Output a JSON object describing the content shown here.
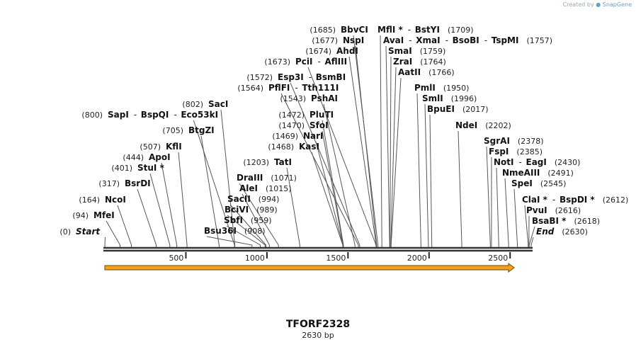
{
  "credit": {
    "prefix": "Created by",
    "brand": "SnapGene"
  },
  "plasmid": {
    "name": "TFORF2328",
    "length_label": "2630 bp",
    "length": 2630
  },
  "ruler": {
    "ticks": [
      500,
      1000,
      1500,
      2000,
      2500
    ],
    "tick_labels": [
      "500",
      "1000",
      "1500",
      "2000",
      "2500"
    ]
  },
  "feature": {
    "name": "ORF arrow",
    "start": 0,
    "end": 2630,
    "color": "#f2a01e"
  },
  "labels": [
    {
      "id": "start",
      "pos": 0,
      "pos_label": "(0)",
      "names": [
        "Start"
      ],
      "italic": true
    },
    {
      "id": "mfei",
      "pos": 94,
      "pos_label": "(94)",
      "names": [
        "MfeI"
      ]
    },
    {
      "id": "ncoi",
      "pos": 164,
      "pos_label": "(164)",
      "names": [
        "NcoI"
      ]
    },
    {
      "id": "bsrdi",
      "pos": 317,
      "pos_label": "(317)",
      "names": [
        "BsrDI"
      ]
    },
    {
      "id": "stui",
      "pos": 401,
      "pos_label": "(401)",
      "names": [
        "StuI *"
      ]
    },
    {
      "id": "apoi",
      "pos": 444,
      "pos_label": "(444)",
      "names": [
        "ApoI"
      ]
    },
    {
      "id": "kfli",
      "pos": 507,
      "pos_label": "(507)",
      "names": [
        "KflI"
      ]
    },
    {
      "id": "btgzi",
      "pos": 705,
      "pos_label": "(705)",
      "names": [
        "BtgZI"
      ]
    },
    {
      "id": "sapi",
      "pos": 800,
      "pos_label": "(800)",
      "names": [
        "SapI",
        "BspQI",
        "Eco53kI"
      ]
    },
    {
      "id": "saci",
      "pos": 802,
      "pos_label": "(802)",
      "names": [
        "SacI"
      ]
    },
    {
      "id": "bsu36i",
      "pos": 908,
      "pos_label": "(908)",
      "names": [
        "Bsu36I"
      ]
    },
    {
      "id": "sbfi",
      "pos": 959,
      "pos_label": "(959)",
      "names": [
        "SbfI"
      ]
    },
    {
      "id": "bcivi",
      "pos": 989,
      "pos_label": "(989)",
      "names": [
        "BciVI"
      ]
    },
    {
      "id": "sacii",
      "pos": 994,
      "pos_label": "(994)",
      "names": [
        "SacII"
      ]
    },
    {
      "id": "alei",
      "pos": 1015,
      "pos_label": "(1015)",
      "names": [
        "AleI"
      ]
    },
    {
      "id": "draiii",
      "pos": 1071,
      "pos_label": "(1071)",
      "names": [
        "DraIII"
      ]
    },
    {
      "id": "tati",
      "pos": 1203,
      "pos_label": "(1203)",
      "names": [
        "TatI"
      ]
    },
    {
      "id": "kasi",
      "pos": 1468,
      "pos_label": "(1468)",
      "names": [
        "KasI"
      ]
    },
    {
      "id": "nari",
      "pos": 1469,
      "pos_label": "(1469)",
      "names": [
        "NarI"
      ]
    },
    {
      "id": "sfoi",
      "pos": 1470,
      "pos_label": "(1470)",
      "names": [
        "SfoI"
      ]
    },
    {
      "id": "pluti",
      "pos": 1472,
      "pos_label": "(1472)",
      "names": [
        "PluTI"
      ]
    },
    {
      "id": "pshai",
      "pos": 1543,
      "pos_label": "(1543)",
      "names": [
        "PshAI"
      ]
    },
    {
      "id": "pflfi",
      "pos": 1564,
      "pos_label": "(1564)",
      "names": [
        "PflFI",
        "Tth111I"
      ]
    },
    {
      "id": "esp3i",
      "pos": 1572,
      "pos_label": "(1572)",
      "names": [
        "Esp3I",
        "BsmBI"
      ]
    },
    {
      "id": "pcii",
      "pos": 1673,
      "pos_label": "(1673)",
      "names": [
        "PciI",
        "AflIII"
      ]
    },
    {
      "id": "ahdi",
      "pos": 1674,
      "pos_label": "(1674)",
      "names": [
        "AhdI"
      ]
    },
    {
      "id": "nspi",
      "pos": 1677,
      "pos_label": "(1677)",
      "names": [
        "NspI"
      ]
    },
    {
      "id": "bbvci",
      "pos": 1685,
      "pos_label": "(1685)",
      "names": [
        "BbvCI"
      ]
    },
    {
      "id": "mfli",
      "pos": 1709,
      "pos_label": "(1709)",
      "names": [
        "MflI *",
        "BstYI"
      ]
    },
    {
      "id": "avai",
      "pos": 1757,
      "pos_label": "(1757)",
      "names": [
        "AvaI",
        "XmaI",
        "BsoBI",
        "TspMI"
      ]
    },
    {
      "id": "smai",
      "pos": 1759,
      "pos_label": "(1759)",
      "names": [
        "SmaI"
      ]
    },
    {
      "id": "zrai",
      "pos": 1764,
      "pos_label": "(1764)",
      "names": [
        "ZraI"
      ]
    },
    {
      "id": "aatii",
      "pos": 1766,
      "pos_label": "(1766)",
      "names": [
        "AatII"
      ]
    },
    {
      "id": "pmli",
      "pos": 1950,
      "pos_label": "(1950)",
      "names": [
        "PmlI"
      ]
    },
    {
      "id": "smli",
      "pos": 1996,
      "pos_label": "(1996)",
      "names": [
        "SmlI"
      ]
    },
    {
      "id": "bpuei",
      "pos": 2017,
      "pos_label": "(2017)",
      "names": [
        "BpuEI"
      ]
    },
    {
      "id": "ndei",
      "pos": 2202,
      "pos_label": "(2202)",
      "names": [
        "NdeI"
      ]
    },
    {
      "id": "sgrai",
      "pos": 2378,
      "pos_label": "(2378)",
      "names": [
        "SgrAI"
      ]
    },
    {
      "id": "fspi",
      "pos": 2385,
      "pos_label": "(2385)",
      "names": [
        "FspI"
      ]
    },
    {
      "id": "noti",
      "pos": 2430,
      "pos_label": "(2430)",
      "names": [
        "NotI",
        "EagI"
      ]
    },
    {
      "id": "nmeaiii",
      "pos": 2491,
      "pos_label": "(2491)",
      "names": [
        "NmeAIII"
      ]
    },
    {
      "id": "spei",
      "pos": 2545,
      "pos_label": "(2545)",
      "names": [
        "SpeI"
      ]
    },
    {
      "id": "clai",
      "pos": 2612,
      "pos_label": "(2612)",
      "names": [
        "ClaI *",
        "BspDI *"
      ]
    },
    {
      "id": "pvui",
      "pos": 2616,
      "pos_label": "(2616)",
      "names": [
        "PvuI"
      ]
    },
    {
      "id": "bsabi",
      "pos": 2618,
      "pos_label": "(2618)",
      "names": [
        "BsaBI *"
      ]
    },
    {
      "id": "end",
      "pos": 2630,
      "pos_label": "(2630)",
      "names": [
        "End"
      ],
      "italic": true
    }
  ]
}
